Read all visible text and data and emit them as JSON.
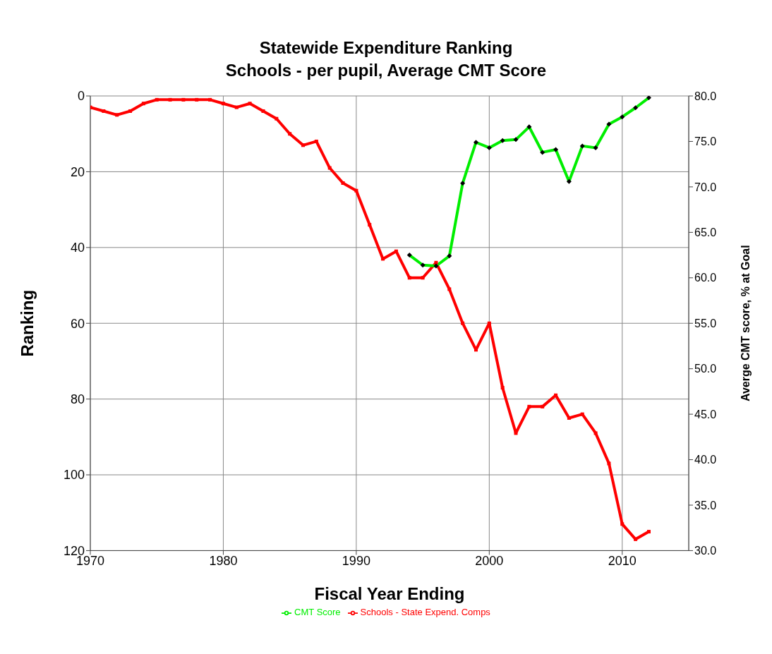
{
  "chart_data": {
    "type": "line",
    "title": "Statewide Expenditure Ranking",
    "subtitle": "Schools - per pupil, Average CMT Score",
    "xlabel": "Fiscal Year Ending",
    "ylabel": "Ranking",
    "y2label": "Averge CMT score, % at Goal",
    "x": [
      1970,
      1971,
      1972,
      1973,
      1974,
      1975,
      1976,
      1977,
      1978,
      1979,
      1980,
      1981,
      1982,
      1983,
      1984,
      1985,
      1986,
      1987,
      1988,
      1989,
      1990,
      1991,
      1992,
      1993,
      1994,
      1995,
      1996,
      1997,
      1998,
      1999,
      2000,
      2001,
      2002,
      2003,
      2004,
      2005,
      2006,
      2007,
      2008,
      2009,
      2010,
      2011,
      2012
    ],
    "series": [
      {
        "name": "Schools - State Expend. Comps",
        "color": "#ff0000",
        "marker": "square",
        "values": [
          3,
          4,
          5,
          4,
          2,
          1,
          1,
          1,
          1,
          1,
          2,
          3,
          2,
          4,
          6,
          10,
          13,
          12,
          19,
          23,
          25,
          34,
          43,
          41,
          48,
          48,
          44,
          51,
          60,
          67,
          60,
          77,
          89,
          82,
          82,
          79,
          85,
          84,
          89,
          97,
          113,
          117,
          115
        ]
      },
      {
        "name": "CMT Score",
        "color": "#00ee00",
        "marker": "diamond",
        "axis": "y2",
        "values": [
          null,
          null,
          null,
          null,
          null,
          null,
          null,
          null,
          null,
          null,
          null,
          null,
          null,
          null,
          null,
          null,
          null,
          null,
          null,
          null,
          null,
          null,
          null,
          null,
          62.5,
          61.4,
          61.3,
          62.4,
          70.4,
          74.9,
          74.3,
          75.1,
          75.2,
          76.6,
          73.8,
          74.1,
          70.6,
          74.5,
          74.3,
          76.9,
          77.7,
          78.7,
          79.8
        ]
      }
    ],
    "xlim": [
      1970,
      2015
    ],
    "xticks": [
      1970,
      1980,
      1990,
      2000,
      2010
    ],
    "ylim": [
      120,
      0
    ],
    "yticks": [
      0,
      20,
      40,
      60,
      80,
      100,
      120
    ],
    "y2lim": [
      30,
      80
    ],
    "y2ticks": [
      {
        "value": 30,
        "label": "30.0"
      },
      {
        "value": 35,
        "label": "35.0"
      },
      {
        "value": 40,
        "label": "40.0"
      },
      {
        "value": 45,
        "label": "45.0"
      },
      {
        "value": 50,
        "label": "50.0"
      },
      {
        "value": 55,
        "label": "55.0"
      },
      {
        "value": 60,
        "label": "60.0"
      },
      {
        "value": 65,
        "label": "65.0"
      },
      {
        "value": 70,
        "label": "70.0"
      },
      {
        "value": 75,
        "label": "75.0"
      },
      {
        "value": 80,
        "label": "80.0"
      }
    ],
    "grid": true,
    "legend": "bottom",
    "line_style": "solid"
  }
}
